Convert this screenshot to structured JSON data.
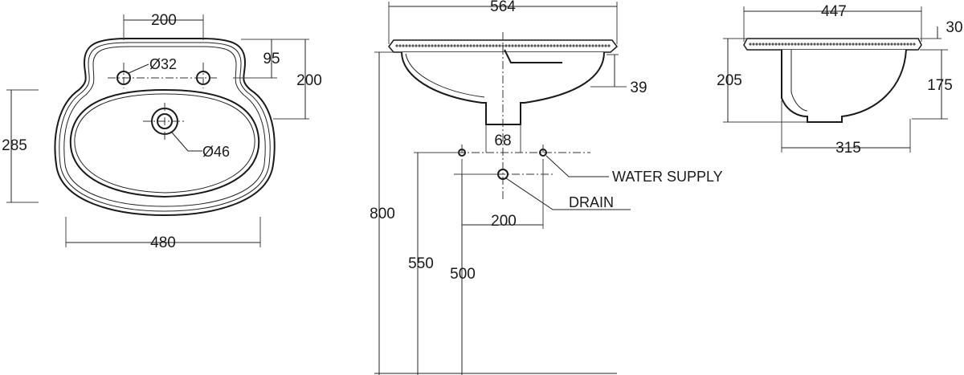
{
  "plan_view": {
    "dim_tap_spacing": "200",
    "dim_back_depth": "95",
    "dim_overall_depth": "200",
    "dim_width": "480",
    "dim_height": "285",
    "tap_hole_label": "Ø32",
    "drain_hole_label": "Ø46"
  },
  "front_view": {
    "dim_rim_width": "564",
    "dim_bowl_drop": "39",
    "dim_trap_width": "68",
    "dim_supply_spacing": "200",
    "dim_mount_height": "800",
    "dim_supply_height": "550",
    "dim_drain_height": "500",
    "water_supply_label": "WATER SUPPLY",
    "drain_label": "DRAIN"
  },
  "side_view": {
    "dim_rim_depth": "447",
    "dim_rim_thickness": "30",
    "dim_overall_height": "205",
    "dim_bowl_height": "175",
    "dim_bowl_depth": "315"
  }
}
